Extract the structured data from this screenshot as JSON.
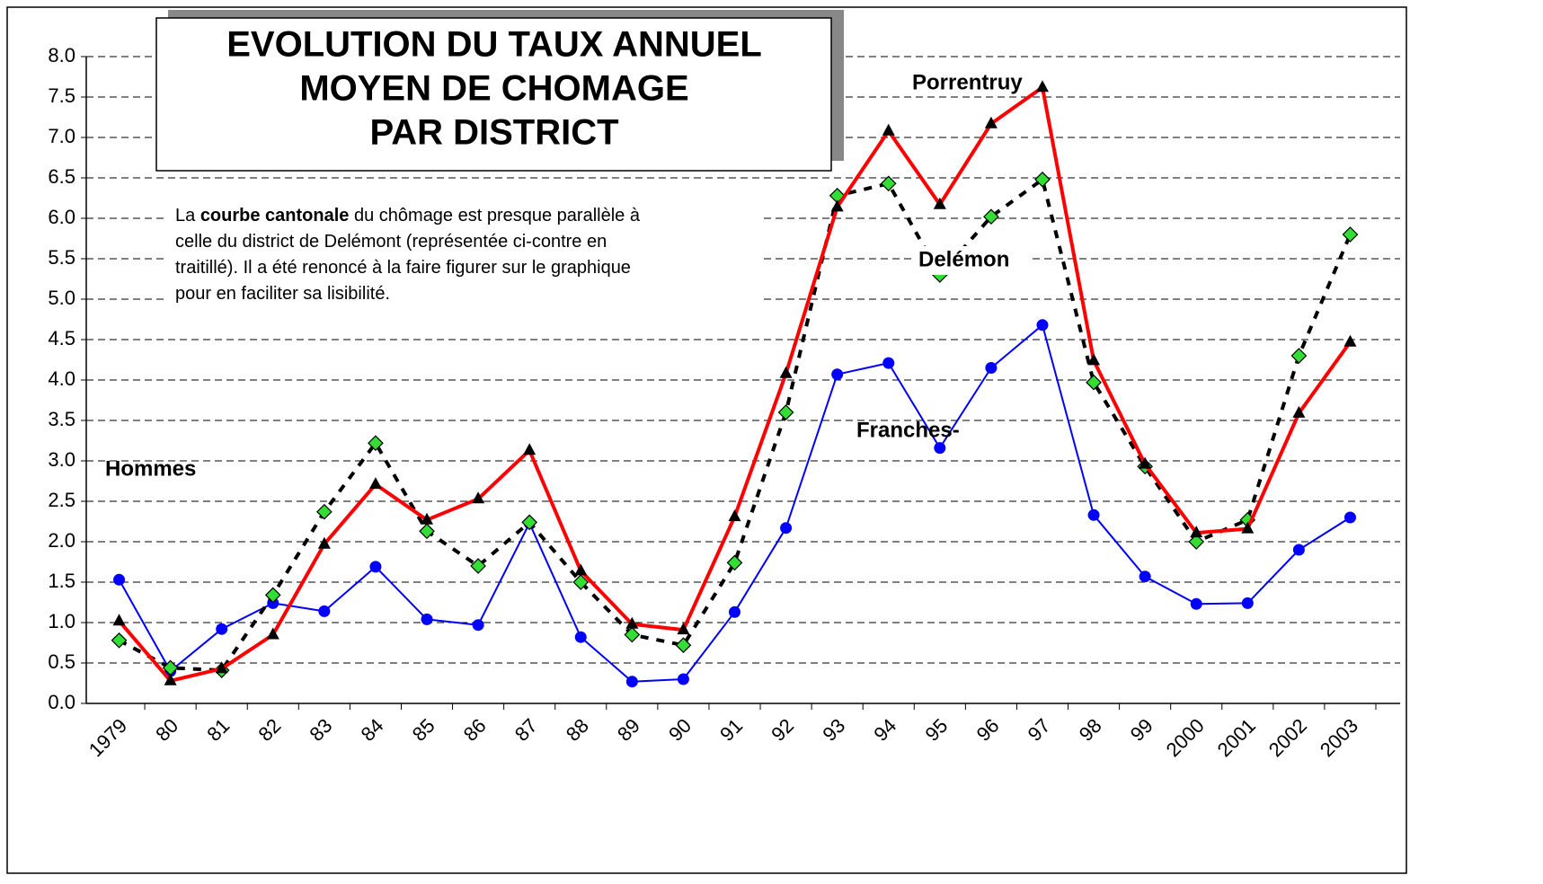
{
  "chart_data": {
    "type": "line",
    "title": [
      "EVOLUTION  DU  TAUX  ANNUEL",
      "MOYEN  DE  CHOMAGE",
      "PAR  DISTRICT"
    ],
    "note": [
      [
        "La ",
        "courbe cantonale",
        " du chômage est presque parallèle à"
      ],
      [
        "celle du district de Delémont (représentée ci-contre en"
      ],
      [
        "traitillé). Il a été renoncé à la faire figurer sur le graphique"
      ],
      [
        "pour en faciliter sa lisibilité."
      ]
    ],
    "annotation": "Hommes",
    "categories": [
      "1979",
      "80",
      "81",
      "82",
      "83",
      "84",
      "85",
      "86",
      "87",
      "88",
      "89",
      "90",
      "91",
      "92",
      "93",
      "94",
      "95",
      "96",
      "97",
      "98",
      "99",
      "2000",
      "2001",
      "2002",
      "2003"
    ],
    "series": [
      {
        "name": "Franches-",
        "color": "#0000ff",
        "marker": "circle",
        "values": [
          1.53,
          0.4,
          0.92,
          1.24,
          1.14,
          1.69,
          1.04,
          0.97,
          2.23,
          0.82,
          0.27,
          0.3,
          1.13,
          2.17,
          4.07,
          4.21,
          3.16,
          4.15,
          4.68,
          2.33,
          1.57,
          1.23,
          1.24,
          1.9,
          2.3
        ]
      },
      {
        "name": "Delémon",
        "color": "#000000",
        "marker": "diamond",
        "marker_color": "#33dd33",
        "dashed": true,
        "values": [
          0.78,
          0.44,
          0.41,
          1.34,
          2.37,
          3.22,
          2.13,
          1.7,
          2.24,
          1.5,
          0.85,
          0.72,
          1.74,
          3.6,
          6.28,
          6.43,
          5.3,
          6.02,
          6.48,
          3.97,
          2.93,
          2.0,
          2.27,
          4.3,
          5.8
        ]
      },
      {
        "name": "Porrentruy",
        "color": "#ff0000",
        "marker": "triangle",
        "marker_color": "#000000",
        "values": [
          1.02,
          0.28,
          0.43,
          0.85,
          1.97,
          2.71,
          2.27,
          2.53,
          3.13,
          1.64,
          0.98,
          0.91,
          2.31,
          4.08,
          6.14,
          7.08,
          6.17,
          7.17,
          7.62,
          4.24,
          2.96,
          2.11,
          2.16,
          3.59,
          4.47
        ]
      }
    ],
    "ylim": [
      0,
      8
    ],
    "yticks": [
      {
        "value": 0,
        "label": "0.0"
      },
      0.5,
      {
        "value": 1,
        "label": "1.0"
      },
      1.5,
      {
        "value": 2,
        "label": "2.0"
      },
      2.5,
      {
        "value": 3,
        "label": "3.0"
      },
      3.5,
      {
        "value": 4,
        "label": "4.0"
      },
      4.5,
      {
        "value": 5,
        "label": "5.0"
      },
      5.5,
      {
        "value": 6,
        "label": "6.0"
      },
      6.5,
      {
        "value": 7,
        "label": "7.0"
      },
      7.5,
      {
        "value": 8,
        "label": "8.0"
      }
    ],
    "grid": true
  }
}
